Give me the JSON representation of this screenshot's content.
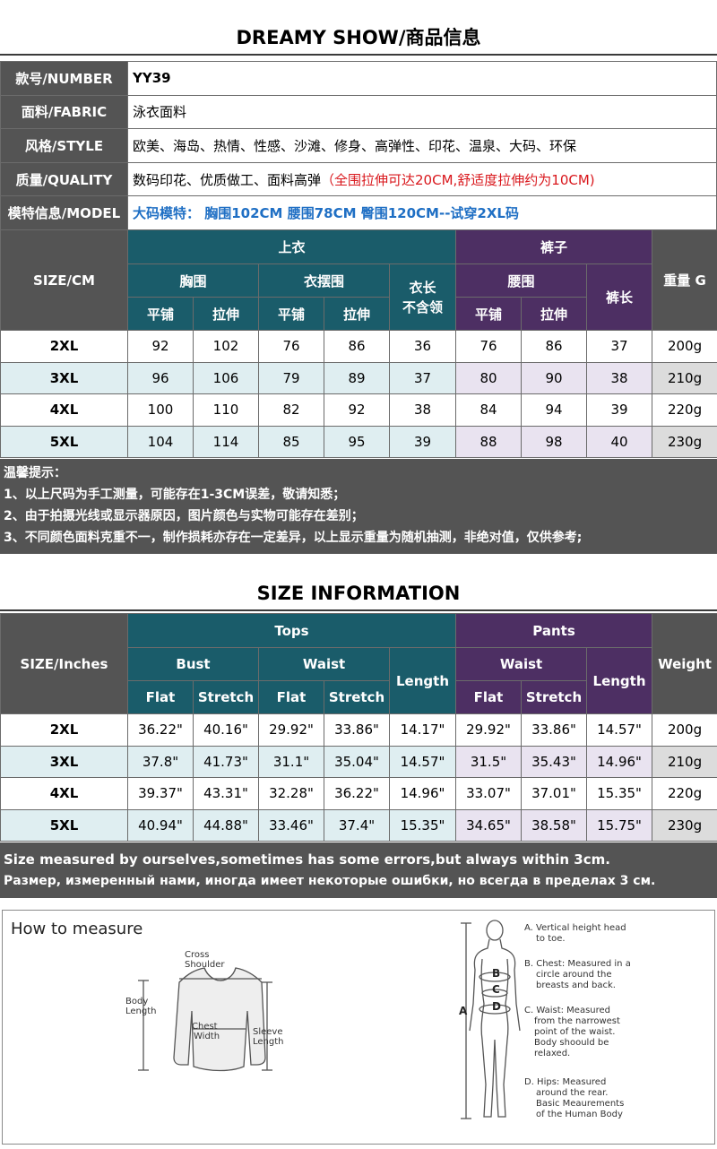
{
  "header1": "DREAMY SHOW/商品信息",
  "info": [
    {
      "key": "款号/NUMBER",
      "value": "YY39"
    },
    {
      "key": "面料/FABRIC",
      "value": "泳衣面料"
    },
    {
      "key": "风格/STYLE",
      "value": "欧美、海岛、热情、性感、沙滩、修身、高弹性、印花、温泉、大码、环保"
    },
    {
      "key": "质量/QUALITY",
      "value": "数码印花、优质做工、面料高弹",
      "value_red": "（全围拉伸可达20CM,舒适度拉伸约为10CM)"
    },
    {
      "key": "模特信息/MODEL",
      "value_blue": "大码模特：  胸围102CM 腰围78CM 臀围120CM--试穿2XL码"
    }
  ],
  "cm_table": {
    "size_label": "SIZE/CM",
    "tops": "上衣",
    "pants": "裤子",
    "weight": "重量\nG",
    "bust": "胸围",
    "hem": "衣摆围",
    "length_tops": "衣长\n不含领",
    "waist": "腰围",
    "length_pants": "裤长",
    "flat": "平铺",
    "stretch": "拉伸",
    "rows": [
      [
        "2XL",
        "92",
        "102",
        "76",
        "86",
        "36",
        "76",
        "86",
        "37",
        "200g"
      ],
      [
        "3XL",
        "96",
        "106",
        "79",
        "89",
        "37",
        "80",
        "90",
        "38",
        "210g"
      ],
      [
        "4XL",
        "100",
        "110",
        "82",
        "92",
        "38",
        "84",
        "94",
        "39",
        "220g"
      ],
      [
        "5XL",
        "104",
        "114",
        "85",
        "95",
        "39",
        "88",
        "98",
        "40",
        "230g"
      ]
    ]
  },
  "notes_cn": [
    "温馨提示：",
    "1、以上尺码为手工测量，可能存在1-3CM误差，敬请知悉；",
    "2、由于拍摄光线或显示器原因，图片颜色与实物可能存在差别；",
    "3、不同颜色面料克重不一，制作损耗亦存在一定差异，以上显示重量为随机抽测，非绝对值，仅供参考;"
  ],
  "header2": "SIZE INFORMATION",
  "in_table": {
    "size_label": "SIZE/Inches",
    "tops": "Tops",
    "pants": "Pants",
    "weight": "Weight",
    "bust": "Bust",
    "waist": "Waist",
    "length": "Length",
    "flat": "Flat",
    "stretch": "Stretch",
    "rows": [
      [
        "2XL",
        "36.22\"",
        "40.16\"",
        "29.92\"",
        "33.86\"",
        "14.17\"",
        "29.92\"",
        "33.86\"",
        "14.57\"",
        "200g"
      ],
      [
        "3XL",
        "37.8\"",
        "41.73\"",
        "31.1\"",
        "35.04\"",
        "14.57\"",
        "31.5\"",
        "35.43\"",
        "14.96\"",
        "210g"
      ],
      [
        "4XL",
        "39.37\"",
        "43.31\"",
        "32.28\"",
        "36.22\"",
        "14.96\"",
        "33.07\"",
        "37.01\"",
        "15.35\"",
        "220g"
      ],
      [
        "5XL",
        "40.94\"",
        "44.88\"",
        "33.46\"",
        "37.4\"",
        "15.35\"",
        "34.65\"",
        "38.58\"",
        "15.75\"",
        "230g"
      ]
    ]
  },
  "notes_en": [
    "Size measured by ourselves,sometimes has some errors,but always within 3cm.",
    "Размер, измеренный нами, иногда имеет некоторые ошибки, но всегда в пределах 3 см."
  ],
  "measure": {
    "title": "How to measure",
    "cross_shoulder": [
      "Cross",
      "Shoulder"
    ],
    "body_length": [
      "Body",
      "Length"
    ],
    "chest_width": [
      "Chest",
      "Width"
    ],
    "sleeve_length": [
      "Sleeve",
      "Length"
    ],
    "labels": [
      "A",
      "B",
      "C",
      "D"
    ],
    "legend": [
      [
        "A. Vertical height head",
        "to toe."
      ],
      [
        "B. Chest: Measured in a",
        "circle around the",
        "breasts and back."
      ],
      [
        "C. Waist: Measured",
        "from the narrowest",
        "point of the waist.",
        "Body shoould be",
        "relaxed."
      ],
      [
        "D. Hips: Measured",
        "around the rear.",
        "Basic Meaurements",
        "of the Human Body"
      ]
    ]
  },
  "colors": {
    "tops": "#1a5c6a",
    "pants": "#4d2f63",
    "gray": "#545454",
    "red": "#d9171c",
    "blue": "#1f6fc4"
  }
}
